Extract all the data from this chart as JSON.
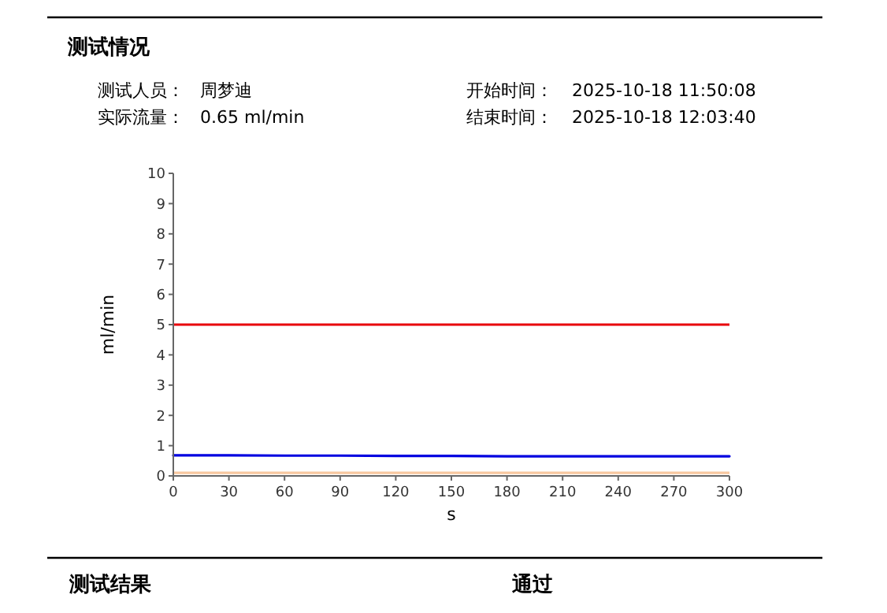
{
  "chart_data": {
    "type": "line",
    "title": "测试情况",
    "xlabel": "s",
    "ylabel": "ml/min",
    "x": [
      0,
      30,
      60,
      90,
      120,
      150,
      180,
      210,
      240,
      270,
      300
    ],
    "series": [
      {
        "color": "#0000e0",
        "values": [
          0.68,
          0.68,
          0.67,
          0.67,
          0.66,
          0.66,
          0.65,
          0.65,
          0.65,
          0.65,
          0.65
        ]
      }
    ],
    "ref_lines": [
      {
        "axis": "y",
        "value": 5,
        "color": "#e8000b"
      },
      {
        "axis": "y",
        "value": 0.1,
        "color": "#f8c8a0"
      }
    ],
    "xlim": [
      0,
      300
    ],
    "xticks": [
      0,
      30,
      60,
      90,
      120,
      150,
      180,
      210,
      240,
      270,
      300
    ],
    "ylim": [
      0,
      10
    ],
    "yticks": [
      0,
      1,
      2,
      3,
      4,
      5,
      6,
      7,
      8,
      9,
      10
    ],
    "grid": false,
    "marker": "none",
    "line_style": "solid",
    "annotations": [
      "测试人员：",
      "周梦迪",
      "实际流量：",
      "0.65 ml/min",
      "开始时间：",
      "2025-10-18 11:50:08",
      "结束时间：",
      "2025-10-18 12:03:40",
      "测试结果",
      "通过"
    ]
  }
}
